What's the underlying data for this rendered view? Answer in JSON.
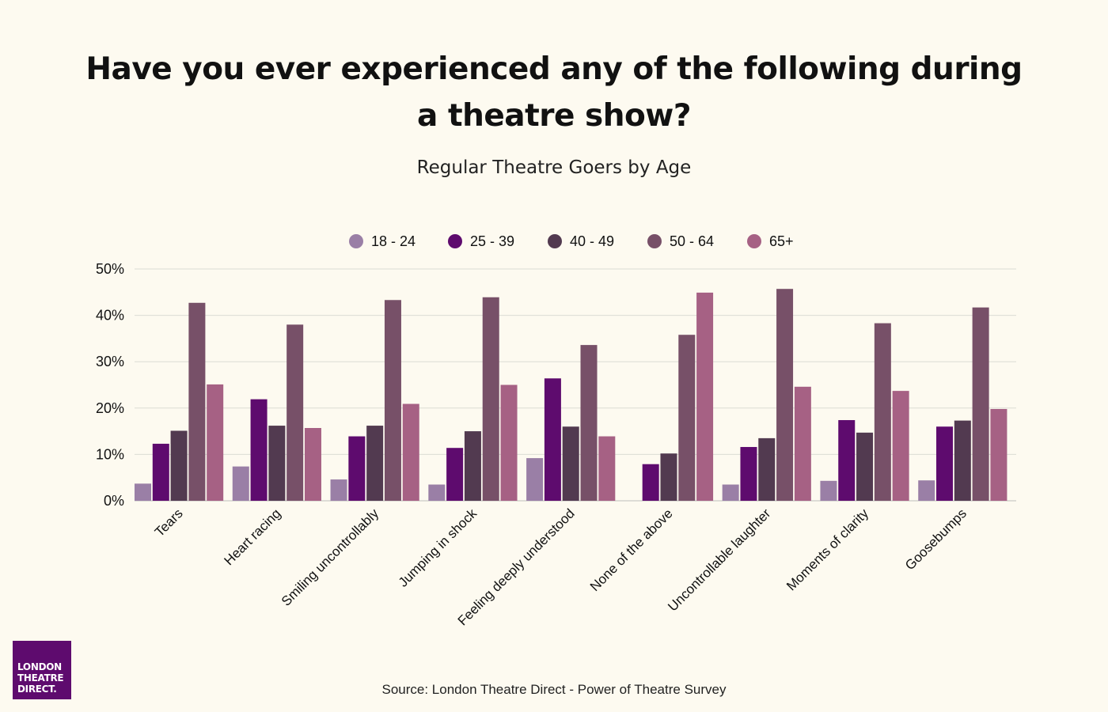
{
  "title": "Have you ever experienced any of the following during a theatre show?",
  "subtitle": "Regular Theatre Goers by Age",
  "source": "Source: London Theatre Direct - Power of Theatre Survey",
  "logo": {
    "line1": "LONDON",
    "line2": "THEATRE",
    "line3": "DIRECT."
  },
  "chart_data": {
    "type": "bar",
    "title": "Have you ever experienced any of the following during a theatre show?",
    "subtitle": "Regular Theatre Goers by Age",
    "xlabel": "",
    "ylabel": "",
    "ylim": [
      0,
      50
    ],
    "y_ticks": [
      0,
      10,
      20,
      30,
      40,
      50
    ],
    "y_tick_labels": [
      "0%",
      "10%",
      "20%",
      "30%",
      "40%",
      "50%"
    ],
    "grid": true,
    "legend_position": "top-center",
    "categories": [
      "Tears",
      "Heart racing",
      "Smiling uncontrollably",
      "Jumping in shock",
      "Feeling deeply understood",
      "None of the above",
      "Uncontrollable laughter",
      "Moments of clarity",
      "Goosebumps"
    ],
    "series": [
      {
        "name": "18 - 24",
        "color": "#9a7fa6",
        "values": [
          3.7,
          7.4,
          4.6,
          3.5,
          9.2,
          0,
          3.5,
          4.3,
          4.4
        ]
      },
      {
        "name": "25 - 39",
        "color": "#5e0b6e",
        "values": [
          12.3,
          21.9,
          13.9,
          11.4,
          26.4,
          7.9,
          11.6,
          17.4,
          16.0
        ]
      },
      {
        "name": "40 - 49",
        "color": "#523a50",
        "values": [
          15.1,
          16.2,
          16.2,
          15.0,
          16.0,
          10.2,
          13.5,
          14.7,
          17.3
        ]
      },
      {
        "name": "50 - 64",
        "color": "#775068",
        "values": [
          42.7,
          38.0,
          43.3,
          43.9,
          33.6,
          35.8,
          45.7,
          38.3,
          41.7
        ]
      },
      {
        "name": "65+",
        "color": "#a66184",
        "values": [
          25.1,
          15.7,
          20.9,
          25.0,
          13.9,
          44.9,
          24.6,
          23.7,
          19.8
        ]
      }
    ]
  }
}
